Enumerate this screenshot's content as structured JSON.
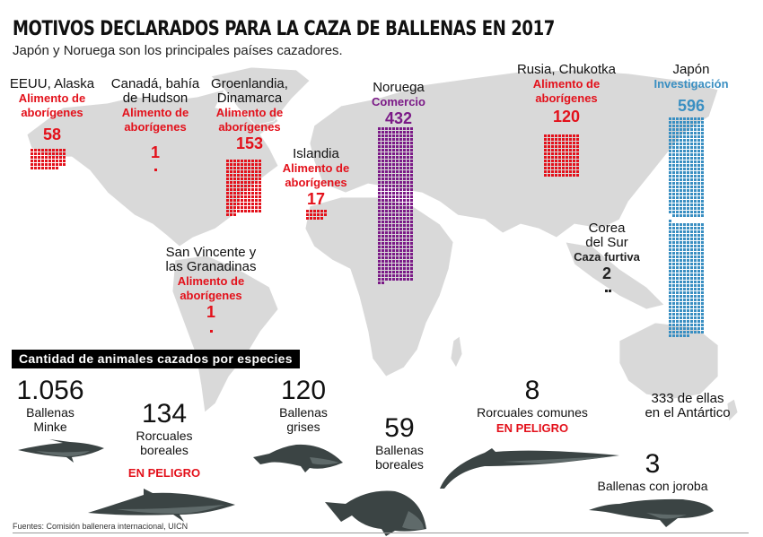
{
  "title": "MOTIVOS DECLARADOS PARA LA CAZA DE BALLENAS EN 2017",
  "subtitle": "Japón y Noruega son los principales países cazadores.",
  "colors": {
    "aborigenes": "#e3111b",
    "comercio": "#7b1a87",
    "investigacion": "#3a8fc2",
    "furtiva": "#222222",
    "land": "#d9d9d9",
    "whale_dark": "#3b4444",
    "whale_light": "#5f6a6a"
  },
  "chart_data": {
    "type": "table",
    "title": "MOTIVOS DECLARADOS PARA LA CAZA DE BALLENAS EN 2017",
    "countries": [
      {
        "name_lines": [
          "EEUU, Alaska"
        ],
        "reason_lines": [
          "Alimento de",
          "aborígenes"
        ],
        "value": 58,
        "value_label": "58",
        "category": "aborigenes"
      },
      {
        "name_lines": [
          "Canadá, bahía",
          "de Hudson"
        ],
        "reason_lines": [
          "Alimento de",
          "aborígenes"
        ],
        "value": 1,
        "value_label": "1",
        "category": "aborigenes"
      },
      {
        "name_lines": [
          "Groenlandia,",
          "Dinamarca"
        ],
        "reason_lines": [
          "Alimento de",
          "aborígenes"
        ],
        "value": 153,
        "value_label": "153",
        "category": "aborigenes"
      },
      {
        "name_lines": [
          "Islandia"
        ],
        "reason_lines": [
          "Alimento de",
          "aborígenes"
        ],
        "value": 17,
        "value_label": "17",
        "category": "aborigenes"
      },
      {
        "name_lines": [
          "San Vincente y",
          "las Granadinas"
        ],
        "reason_lines": [
          "Alimento de",
          "aborígenes"
        ],
        "value": 1,
        "value_label": "1",
        "category": "aborigenes"
      },
      {
        "name_lines": [
          "Noruega"
        ],
        "reason_lines": [
          "Comercio"
        ],
        "value": 432,
        "value_label": "432",
        "category": "comercio"
      },
      {
        "name_lines": [
          "Rusia, Chukotka"
        ],
        "reason_lines": [
          "Alimento de",
          "aborígenes"
        ],
        "value": 120,
        "value_label": "120",
        "category": "aborigenes"
      },
      {
        "name_lines": [
          "Corea",
          "del Sur"
        ],
        "reason_lines": [
          "Caza furtiva"
        ],
        "value": 2,
        "value_label": "2",
        "category": "furtiva"
      },
      {
        "name_lines": [
          "Japón"
        ],
        "reason_lines": [
          "Investigación"
        ],
        "value": 596,
        "value_label": "596",
        "category": "investigacion",
        "note_value": 333,
        "note_lines": [
          "333 de ellas",
          "en el Antártico"
        ]
      }
    ],
    "species_title": "Cantidad de animales cazados por especies",
    "species": [
      {
        "value_label": "1.056",
        "value": 1056,
        "name_lines": [
          "Ballenas",
          "Minke"
        ],
        "endangered": false
      },
      {
        "value_label": "134",
        "value": 134,
        "name_lines": [
          "Rorcuales",
          "boreales"
        ],
        "endangered": true
      },
      {
        "value_label": "120",
        "value": 120,
        "name_lines": [
          "Ballenas",
          "grises"
        ],
        "endangered": false
      },
      {
        "value_label": "59",
        "value": 59,
        "name_lines": [
          "Ballenas",
          "boreales"
        ],
        "endangered": false
      },
      {
        "value_label": "8",
        "value": 8,
        "name_lines": [
          "Rorcuales comunes"
        ],
        "endangered": true
      },
      {
        "value_label": "3",
        "value": 3,
        "name_lines": [
          "Ballenas con joroba"
        ],
        "endangered": false
      }
    ],
    "endangered_label": "EN PELIGRO"
  },
  "source": "Fuentes: Comisión ballenera internacional, UICN"
}
